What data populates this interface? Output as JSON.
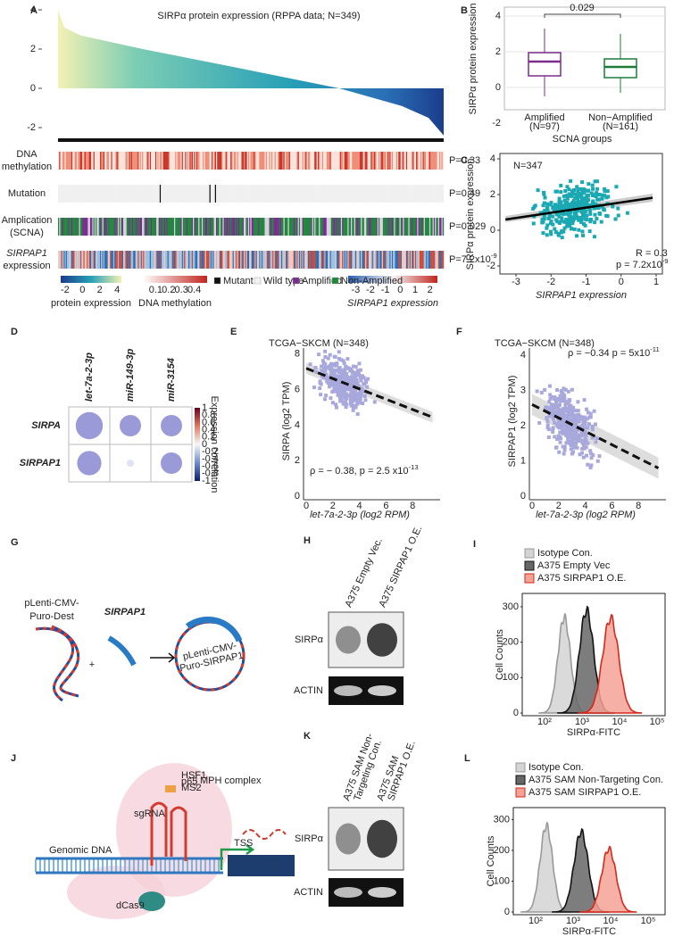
{
  "A": {
    "label": "A",
    "title": "SIRPα protein expression (RPPA data; N=349)",
    "yticks": [
      4,
      2,
      0,
      -2
    ],
    "tracks": [
      {
        "name": [
          "DNA",
          "methylation"
        ],
        "p": "P=0.33"
      },
      {
        "name": [
          "Mutation"
        ],
        "p": "P=0.49"
      },
      {
        "name": [
          "Amplication",
          "(SCNA)"
        ],
        "p": "P=0.029"
      },
      {
        "name": [
          "SIRPAP1",
          "expression"
        ],
        "p": "P=7.2x10",
        "p_exp": "-9"
      }
    ],
    "legend": {
      "protein": {
        "ticks": [
          -2,
          0,
          2,
          4
        ],
        "label": "protein expression"
      },
      "methylation": {
        "ticks": [
          0.1,
          0.2,
          0.3,
          0.4
        ],
        "label": "DNA methylation"
      },
      "categories": [
        "Mutant",
        "Wild type",
        "Amplified",
        "Non-Amplified"
      ],
      "category_colors": [
        "#111111",
        "#f2f2f2",
        "#7b2d8e",
        "#1d8a3a"
      ],
      "sirpap1": {
        "ticks": [
          -3,
          -2,
          -1,
          0,
          1,
          2
        ],
        "label": "SIRPAP1 expression"
      }
    }
  },
  "B": {
    "label": "B",
    "ylabel": "SIRPα protein expression",
    "xlabel": "SCNA groups",
    "ylim": [
      -3,
      4.5
    ],
    "yticks": [
      4,
      2,
      0,
      -2
    ],
    "pvalue": "0.029",
    "groups": [
      {
        "name": "Amplified",
        "n": "(N=97)",
        "color": "#7b2d8e",
        "low": -0.5,
        "q1": 0.65,
        "median": 1.45,
        "q3": 1.95,
        "high": 3.3
      },
      {
        "name": "Non−Amplified",
        "n": "(N=161)",
        "color": "#1d7a3a",
        "low": -0.3,
        "q1": 0.55,
        "median": 1.15,
        "q3": 1.6,
        "high": 3.0
      }
    ]
  },
  "C": {
    "label": "C",
    "n": "N=347",
    "r": "R = 0.3",
    "p": "p = 7.2x10",
    "p_exp": "-9",
    "xlabel": "SIRPAP1 expression",
    "ylabel": "SIRPα protein expression",
    "xticks": [
      -3,
      -2,
      -1,
      0,
      1
    ],
    "yticks": [
      4,
      2,
      0,
      -2
    ]
  },
  "D": {
    "label": "D",
    "columns": [
      "let-7a-2-3p",
      "miR-149-3p",
      "miR-3154"
    ],
    "rows": [
      "SIRPA",
      "SIRPAP1"
    ],
    "values": [
      [
        -0.38,
        -0.3,
        -0.3
      ],
      [
        -0.34,
        -0.1,
        -0.3
      ]
    ],
    "colorbar_label": "Expression correlation",
    "colorbar_ticks": [
      1,
      0.8,
      0.6,
      0.4,
      0.2,
      0,
      -0.2,
      -0.4,
      -0.6,
      -0.8,
      -1
    ]
  },
  "E": {
    "label": "E",
    "title": "TCGA−SKCM (N=348)",
    "ylabel": "SIRPA (log2 TPM)",
    "xlabel": "let-7a-2-3p (log2 RPM)",
    "xticks": [
      0,
      2,
      4,
      6,
      8
    ],
    "yticks": [
      0,
      2,
      4,
      6,
      8
    ],
    "annotation": "ρ = − 0.38, p = 2.5 x10",
    "annotation_exp": "-13"
  },
  "F": {
    "label": "F",
    "title": "TCGA−SKCM (N=348)",
    "ylabel": "SIRPAP1 (log2 TPM)",
    "xlabel": "let-7a-2-3p (log2 RPM)",
    "xticks": [
      0,
      2,
      4,
      6,
      8
    ],
    "yticks": [
      0,
      1,
      2,
      3,
      4
    ],
    "annotation": "ρ = −0.34  p = 5x10",
    "annotation_exp": "-11"
  },
  "G": {
    "label": "G",
    "vector": [
      "pLenti-CMV-",
      "Puro-Dest"
    ],
    "gene": "SIRPAP1",
    "plus": "+",
    "product": [
      "pLenti-CMV-",
      "Puro-SIRPAP1"
    ]
  },
  "H": {
    "label": "H",
    "lanes": [
      "A375 Empty Vec.",
      "A375 SIRPAP1 O.E."
    ],
    "rows": [
      "SIRPα",
      "ACTIN"
    ]
  },
  "I": {
    "label": "I",
    "legend": [
      "Isotype Con.",
      "A375 Empty Vec",
      "A375 SIRPAP1 O.E."
    ],
    "ylabel": "Cell Counts",
    "xlabel": "SIRPα-FITC",
    "yticks": [
      0,
      100,
      200,
      300
    ],
    "xticks": [
      "10²",
      "10³",
      "10⁴",
      "10⁵"
    ]
  },
  "J": {
    "label": "J",
    "texts": {
      "genomic": "Genomic DNA",
      "sgrna": "sgRNA",
      "dcas9": "dCas9",
      "tss": "TSS",
      "hsf1": "HSF1",
      "p65": "p65",
      "ms2": "MS2",
      "mph": "MPH complex"
    }
  },
  "K": {
    "label": "K",
    "lanes": [
      [
        "A375 SAM Non-",
        "Targeting Con."
      ],
      [
        "A375 SAM",
        "SIRPAP1 O.E."
      ]
    ],
    "rows": [
      "SIRPα",
      "ACTIN"
    ]
  },
  "L": {
    "label": "L",
    "legend": [
      "Isotype Con.",
      "A375 SAM Non-Targeting Con.",
      "A375 SAM SIRPAP1 O.E."
    ],
    "ylabel": "Cell Counts",
    "xlabel": "SIRPα-FITC",
    "yticks": [
      0,
      100,
      200,
      300
    ],
    "xticks": [
      "10²",
      "10³",
      "10⁴",
      "10⁵"
    ]
  }
}
